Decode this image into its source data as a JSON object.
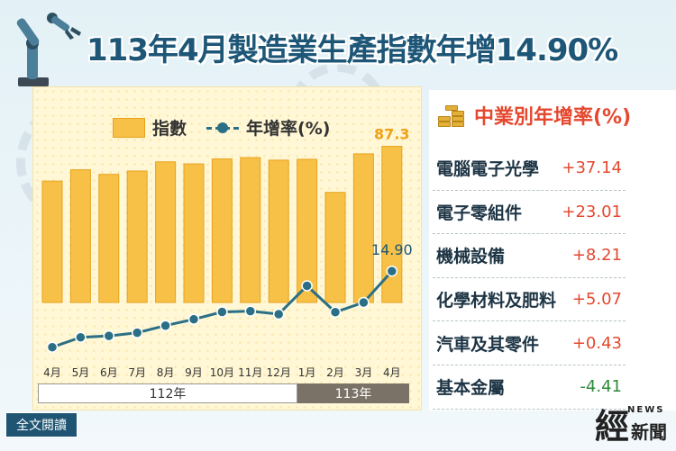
{
  "title": "113年4月製造業生產指數年增14.90%",
  "legend": {
    "bar_label": "指數",
    "line_label": "年增率(%)"
  },
  "chart_data": {
    "type": "bar",
    "categories": [
      "4月",
      "5月",
      "6月",
      "7月",
      "8月",
      "9月",
      "10月",
      "11月",
      "12月",
      "1月",
      "2月",
      "3月",
      "4月"
    ],
    "series": [
      {
        "name": "指數",
        "type": "bar",
        "values": [
          79.0,
          81.7,
          80.6,
          81.4,
          83.6,
          83.1,
          84.3,
          84.6,
          84.0,
          84.2,
          76.3,
          85.5,
          87.3
        ]
      },
      {
        "name": "年增率(%)",
        "type": "line",
        "values": [
          -23.5,
          -18.5,
          -17.8,
          -16.2,
          -12.6,
          -9.4,
          -5.7,
          -5.3,
          -6.8,
          7.5,
          -5.8,
          -0.9,
          14.9
        ]
      }
    ],
    "bar_ylim": [
      50,
      90
    ],
    "line_ylim": [
      -30,
      20
    ],
    "data_labels": {
      "bar_last": "87.3",
      "line_last": "14.90"
    },
    "year_groups": [
      {
        "label": "112年",
        "span": 9
      },
      {
        "label": "113年",
        "span": 4
      }
    ]
  },
  "side": {
    "title": "中業別年增率(%)",
    "rows": [
      {
        "name": "電腦電子光學",
        "value": "+37.14",
        "positive": true
      },
      {
        "name": "電子零組件",
        "value": "+23.01",
        "positive": true
      },
      {
        "name": "機械設備",
        "value": "+8.21",
        "positive": true
      },
      {
        "name": "化學材料及肥料",
        "value": "+5.07",
        "positive": true
      },
      {
        "name": "汽車及其零件",
        "value": "+0.43",
        "positive": true
      },
      {
        "name": "基本金屬",
        "value": "-4.41",
        "positive": false
      }
    ]
  },
  "footer": {
    "read_button": "全文閱讀",
    "logo_main": "經",
    "logo_news": "NEWS",
    "logo_sub": "新聞"
  },
  "colors": {
    "bar": "#f7c046",
    "bar_border": "#e8a31f",
    "line": "#2a6f86",
    "positive": "#e5482f",
    "negative": "#2e8a3b",
    "title": "#1d5676"
  }
}
